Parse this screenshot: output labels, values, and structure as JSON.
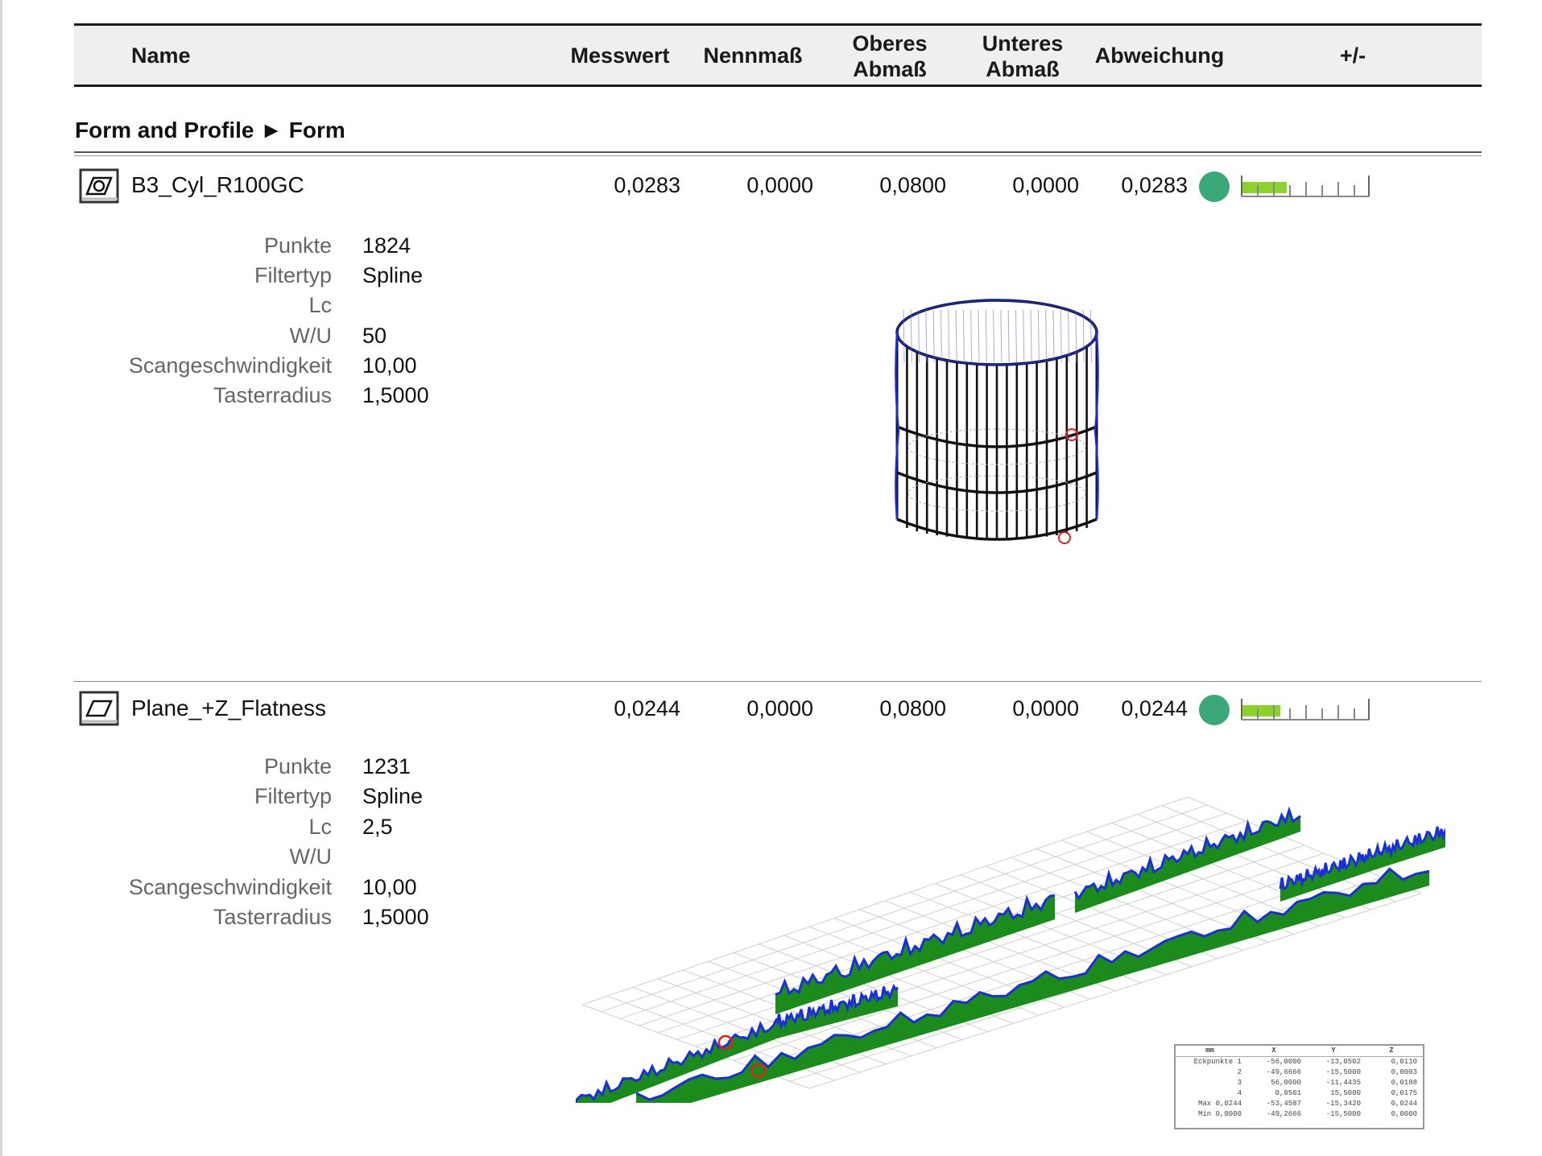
{
  "header": {
    "name": "Name",
    "messwert": "Messwert",
    "nennmass": "Nennmaß",
    "oberes_l1": "Oberes",
    "oberes_l2": "Abmaß",
    "unteres_l1": "Unteres",
    "unteres_l2": "Abmaß",
    "abweichung": "Abweichung",
    "plusminus": "+/-"
  },
  "section": {
    "title": "Form and Profile ► Form"
  },
  "colors": {
    "status_ok": "#3aa878",
    "bar_fill": "#8bd22a",
    "deviation_fill": "#1b8c1b",
    "profile_line": "#1a2ee0"
  },
  "features": [
    {
      "name": "B3_Cyl_R100GC",
      "icon": "cylindricity-icon",
      "messwert": "0,0283",
      "nennmass": "0,0000",
      "oberes": "0,0800",
      "unteres": "0,0000",
      "abweichung": "0,0283",
      "status": "ok",
      "tolerance_fill_fraction": 0.354,
      "params": [
        {
          "label": "Punkte",
          "value": "1824"
        },
        {
          "label": "Filtertyp",
          "value": "Spline"
        },
        {
          "label": "Lc",
          "value": ""
        },
        {
          "label": "W/U",
          "value": "50"
        },
        {
          "label": "Scangeschwindigkeit",
          "value": "10,00"
        },
        {
          "label": "Tasterradius",
          "value": "1,5000"
        }
      ]
    },
    {
      "name": "Plane_+Z_Flatness",
      "icon": "flatness-icon",
      "messwert": "0,0244",
      "nennmass": "0,0000",
      "oberes": "0,0800",
      "unteres": "0,0000",
      "abweichung": "0,0244",
      "status": "ok",
      "tolerance_fill_fraction": 0.305,
      "params": [
        {
          "label": "Punkte",
          "value": "1231"
        },
        {
          "label": "Filtertyp",
          "value": "Spline"
        },
        {
          "label": "Lc",
          "value": "2,5"
        },
        {
          "label": "W/U",
          "value": ""
        },
        {
          "label": "Scangeschwindigkeit",
          "value": "10,00"
        },
        {
          "label": "Tasterradius",
          "value": "1,5000"
        }
      ]
    }
  ],
  "corner_table": {
    "headers": [
      "mm",
      "X",
      "Y",
      "Z"
    ],
    "rows": [
      [
        "Eckpunkte 1",
        "-56,0000",
        "-13,0502",
        "0,0110"
      ],
      [
        "2",
        "-49,6666",
        "-15,5000",
        "0,0003"
      ],
      [
        "3",
        "56,0000",
        "-11,4435",
        "0,0188"
      ],
      [
        "4",
        "0,0501",
        "15,5000",
        "0,0175"
      ],
      [
        "Max 0,0244",
        "-53,4587",
        "-15,3420",
        "0,0244"
      ],
      [
        "Min 0,0000",
        "-49,2666",
        "-15,5000",
        "0,0000"
      ]
    ]
  }
}
